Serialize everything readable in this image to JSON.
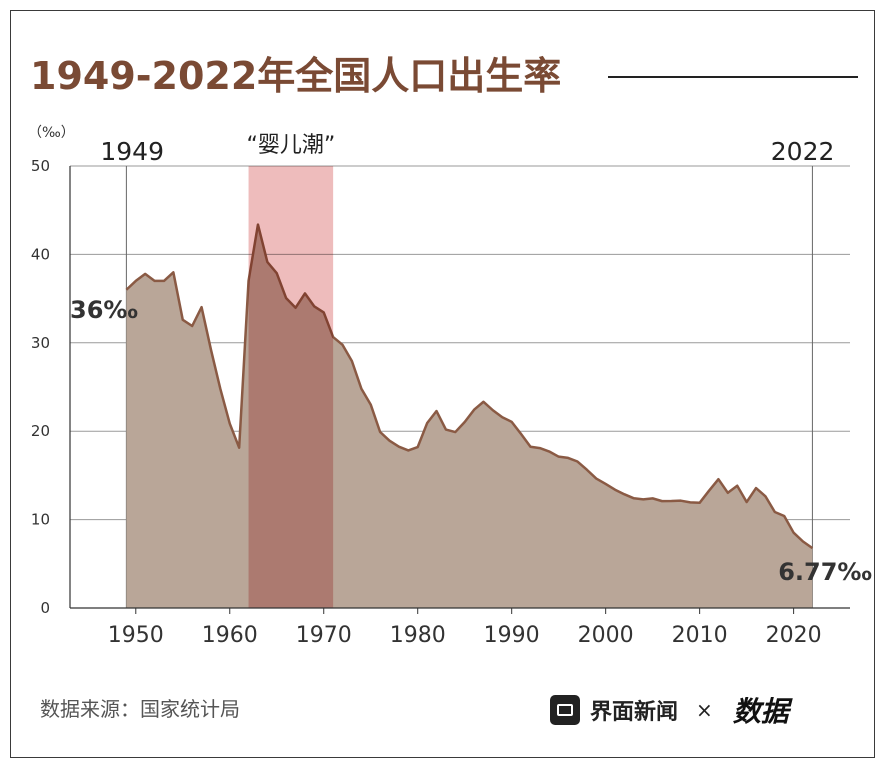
{
  "header": {
    "title": "1949-2022年全国人口出生率"
  },
  "footer": {
    "source": "数据来源：国家统计局",
    "brand_name": "界面新闻",
    "brand_separator": "×",
    "brand_partner": "数据"
  },
  "colors": {
    "title": "#7a4a34",
    "area_fill": "#b9a698",
    "area_stroke": "#8a5a44",
    "highlight": "#e8a6a6",
    "grid": "#9a9a9a"
  },
  "chart_data": {
    "type": "area",
    "title": "1949-2022年全国人口出生率",
    "unit_label": "（‰）",
    "xlim": [
      1943,
      2026
    ],
    "ylim": [
      0,
      50
    ],
    "x_ticks": [
      1950,
      1960,
      1970,
      1980,
      1990,
      2000,
      2010,
      2020
    ],
    "y_ticks": [
      0,
      10,
      20,
      30,
      40,
      50
    ],
    "grid": true,
    "highlight_band": {
      "label": "“婴儿潮”",
      "x_start": 1962,
      "x_end": 1971
    },
    "annotations": {
      "start_year": "1949",
      "end_year": "2022",
      "start_value_label": "36‰",
      "end_value_label": "6.77‰"
    },
    "x": [
      1949,
      1950,
      1951,
      1952,
      1953,
      1954,
      1955,
      1956,
      1957,
      1958,
      1959,
      1960,
      1961,
      1962,
      1963,
      1964,
      1965,
      1966,
      1967,
      1968,
      1969,
      1970,
      1971,
      1972,
      1973,
      1974,
      1975,
      1976,
      1977,
      1978,
      1979,
      1980,
      1981,
      1982,
      1983,
      1984,
      1985,
      1986,
      1987,
      1988,
      1989,
      1990,
      1991,
      1992,
      1993,
      1994,
      1995,
      1996,
      1997,
      1998,
      1999,
      2000,
      2001,
      2002,
      2003,
      2004,
      2005,
      2006,
      2007,
      2008,
      2009,
      2010,
      2011,
      2012,
      2013,
      2014,
      2015,
      2016,
      2017,
      2018,
      2019,
      2020,
      2021,
      2022
    ],
    "y": [
      36.0,
      37.0,
      37.8,
      37.0,
      37.0,
      37.97,
      32.6,
      31.9,
      34.03,
      29.22,
      24.78,
      20.86,
      18.13,
      37.01,
      43.37,
      39.14,
      37.88,
      35.05,
      33.96,
      35.59,
      34.11,
      33.43,
      30.65,
      29.77,
      27.93,
      24.82,
      23.01,
      19.91,
      18.93,
      18.25,
      17.82,
      18.21,
      20.91,
      22.28,
      20.19,
      19.9,
      21.04,
      22.43,
      23.33,
      22.37,
      21.58,
      21.06,
      19.68,
      18.24,
      18.09,
      17.7,
      17.12,
      16.98,
      16.57,
      15.64,
      14.64,
      14.03,
      13.38,
      12.86,
      12.41,
      12.29,
      12.4,
      12.09,
      12.1,
      12.14,
      11.95,
      11.9,
      13.27,
      14.57,
      13.03,
      13.83,
      11.99,
      13.57,
      12.64,
      10.86,
      10.41,
      8.52,
      7.52,
      6.77
    ]
  }
}
